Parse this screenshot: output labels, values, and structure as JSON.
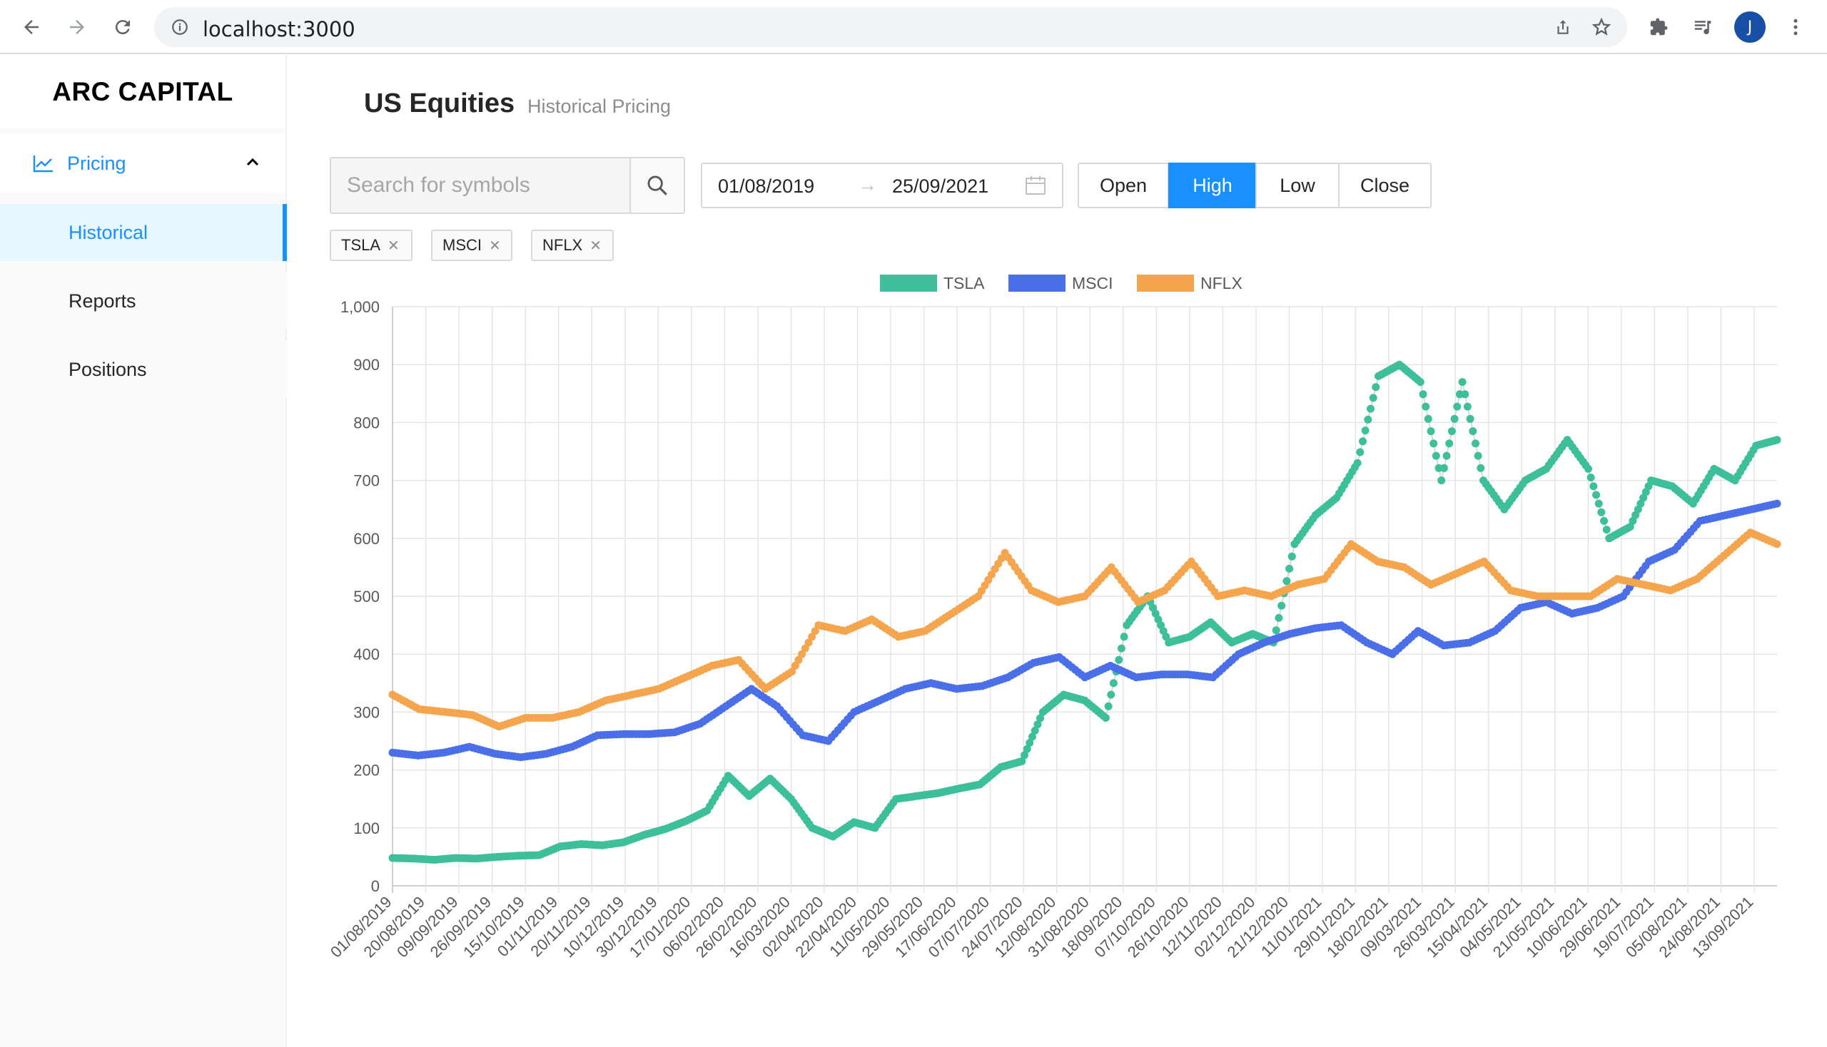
{
  "browser": {
    "url": "localhost:3000",
    "avatar_letter": "J"
  },
  "sidebar": {
    "brand": "ARC CAPITAL",
    "section_label": "Pricing",
    "items": [
      {
        "label": "Historical",
        "active": true
      },
      {
        "label": "Reports",
        "active": false
      },
      {
        "label": "Positions",
        "active": false
      }
    ]
  },
  "header": {
    "title": "US Equities",
    "subtitle": "Historical Pricing"
  },
  "toolbar": {
    "search_placeholder": "Search for symbols",
    "date_from": "01/08/2019",
    "date_arrow": "→",
    "date_to": "25/09/2021",
    "price_options": [
      "Open",
      "High",
      "Low",
      "Close"
    ],
    "selected_option": "High"
  },
  "tags": [
    "TSLA",
    "MSCI",
    "NFLX"
  ],
  "colors": {
    "accent": "#1890ff",
    "TSLA": "#3dbf9a",
    "MSCI": "#4a6fe8",
    "NFLX": "#f5a54e"
  },
  "chart_data": {
    "type": "scatter",
    "title": "",
    "xlabel": "",
    "ylabel": "",
    "ylim": [
      0,
      1000
    ],
    "yticks": [
      "0",
      "100",
      "200",
      "300",
      "400",
      "500",
      "600",
      "700",
      "800",
      "900",
      "1,000"
    ],
    "grid": true,
    "legend_position": "top-center",
    "x_tick_labels": [
      "01/08/2019",
      "20/08/2019",
      "09/09/2019",
      "26/09/2019",
      "15/10/2019",
      "01/11/2019",
      "20/11/2019",
      "10/12/2019",
      "30/12/2019",
      "17/01/2020",
      "06/02/2020",
      "26/02/2020",
      "16/03/2020",
      "02/04/2020",
      "22/04/2020",
      "11/05/2020",
      "29/05/2020",
      "17/06/2020",
      "07/07/2020",
      "24/07/2020",
      "12/08/2020",
      "31/08/2020",
      "18/09/2020",
      "07/10/2020",
      "26/10/2020",
      "12/11/2020",
      "02/12/2020",
      "21/12/2020",
      "11/01/2021",
      "29/01/2021",
      "18/02/2021",
      "09/03/2021",
      "26/03/2021",
      "15/04/2021",
      "04/05/2021",
      "21/05/2021",
      "10/06/2021",
      "29/06/2021",
      "19/07/2021",
      "05/08/2021",
      "24/08/2021",
      "13/09/2021"
    ],
    "series": [
      {
        "name": "TSLA",
        "values": [
          48,
          47,
          45,
          48,
          47,
          50,
          52,
          53,
          68,
          72,
          70,
          75,
          88,
          98,
          112,
          130,
          190,
          155,
          185,
          150,
          100,
          85,
          110,
          100,
          150,
          155,
          160,
          168,
          175,
          205,
          215,
          300,
          330,
          320,
          290,
          450,
          500,
          420,
          430,
          455,
          420,
          435,
          420,
          590,
          640,
          670,
          730,
          880,
          900,
          870,
          700,
          870,
          700,
          650,
          700,
          720,
          770,
          720,
          600,
          620,
          700,
          690,
          660,
          720,
          700,
          760,
          770
        ]
      },
      {
        "name": "MSCI",
        "values": [
          230,
          225,
          230,
          240,
          228,
          222,
          228,
          240,
          260,
          262,
          262,
          265,
          280,
          310,
          340,
          310,
          260,
          250,
          300,
          320,
          340,
          350,
          340,
          345,
          360,
          385,
          395,
          360,
          380,
          360,
          365,
          365,
          360,
          400,
          420,
          435,
          445,
          450,
          420,
          400,
          440,
          415,
          420,
          440,
          480,
          490,
          470,
          480,
          500,
          560,
          580,
          630,
          640,
          650,
          660
        ]
      },
      {
        "name": "NFLX",
        "values": [
          330,
          305,
          300,
          295,
          275,
          290,
          290,
          300,
          320,
          330,
          340,
          360,
          380,
          390,
          340,
          370,
          450,
          440,
          460,
          430,
          440,
          470,
          500,
          575,
          510,
          490,
          500,
          550,
          490,
          510,
          560,
          500,
          510,
          500,
          520,
          530,
          590,
          560,
          550,
          520,
          540,
          560,
          510,
          500,
          500,
          500,
          530,
          520,
          510,
          530,
          570,
          610,
          590
        ]
      }
    ]
  }
}
